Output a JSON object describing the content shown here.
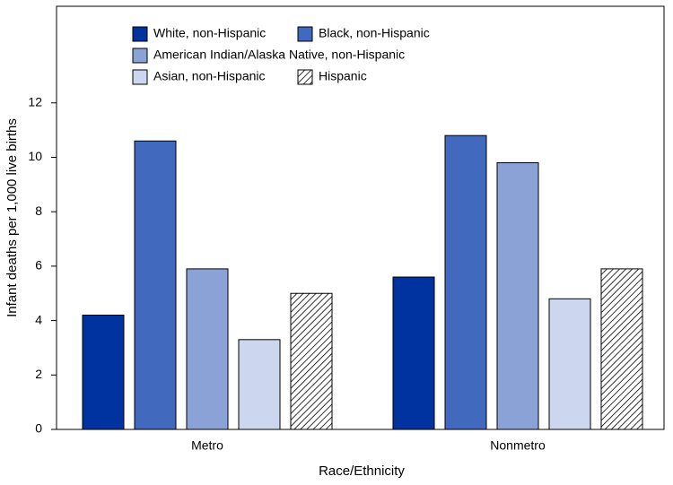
{
  "chart_data": {
    "type": "bar",
    "categories": [
      "Metro",
      "Nonmetro"
    ],
    "series": [
      {
        "name": "White, non-Hispanic",
        "color": "#0033a0",
        "values": [
          4.2,
          5.6
        ]
      },
      {
        "name": "Black, non-Hispanic",
        "color": "#4169be",
        "values": [
          10.6,
          10.8
        ]
      },
      {
        "name": "American Indian/Alaska Native, non-Hispanic",
        "color": "#8aa2d6",
        "values": [
          5.9,
          9.8
        ]
      },
      {
        "name": "Asian, non-Hispanic",
        "color": "#ccd7ef",
        "values": [
          3.3,
          4.8
        ]
      },
      {
        "name": "Hispanic",
        "color": "#ffffff",
        "pattern": "hatch",
        "values": [
          5.0,
          5.9
        ]
      }
    ],
    "x_label": "Race/Ethnicity",
    "y_label": "Infant deaths per 1,000 live births",
    "ylim": [
      0,
      15.55
    ],
    "yticks": [
      0,
      2,
      4,
      6,
      8,
      10,
      12
    ],
    "grid": false
  }
}
